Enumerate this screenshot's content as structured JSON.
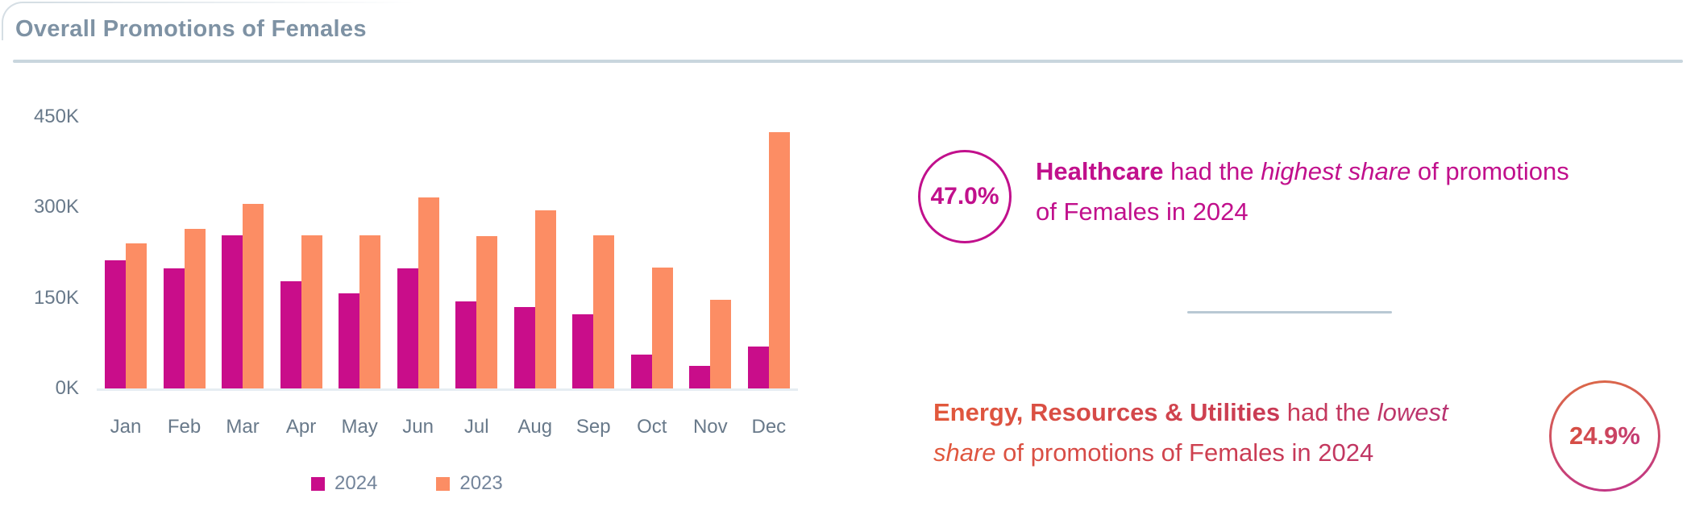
{
  "card": {
    "title": "Overall Promotions of Females"
  },
  "colors": {
    "series_2024": "#C90D8A",
    "series_2023": "#FC8D64",
    "title_text": "#7E92A4",
    "axis_text": "#68798A",
    "divider": "#C9D6DE",
    "callout_highest": "#C1108C",
    "callout_lowest_gradient_from": "#E2593B",
    "callout_lowest_gradient_to": "#AF2F83"
  },
  "chart_data": {
    "type": "bar",
    "title": "Overall Promotions of Females",
    "categories": [
      "Jan",
      "Feb",
      "Mar",
      "Apr",
      "May",
      "Jun",
      "Jul",
      "Aug",
      "Sep",
      "Oct",
      "Nov",
      "Dec"
    ],
    "series": [
      {
        "name": "2024",
        "color": "#C90D8A",
        "values_thousands": [
          212,
          199,
          254,
          178,
          157,
          199,
          144,
          135,
          123,
          56,
          38,
          69
        ]
      },
      {
        "name": "2023",
        "color": "#FC8D64",
        "values_thousands": [
          241,
          265,
          306,
          254,
          254,
          317,
          253,
          295,
          254,
          200,
          147,
          425
        ]
      }
    ],
    "y_ticks": [
      "450K",
      "300K",
      "150K",
      "0K"
    ],
    "ylim_thousands": [
      0,
      450
    ],
    "xlabel": "",
    "ylabel": "",
    "grid": false,
    "legend_position": "bottom"
  },
  "legend": {
    "items": [
      {
        "label": "2024",
        "color": "#C90D8A"
      },
      {
        "label": "2023",
        "color": "#FC8D64"
      }
    ]
  },
  "callouts": [
    {
      "id": "highest",
      "value": "47.0%",
      "segments": [
        {
          "t": "Healthcare",
          "b": true
        },
        {
          "t": " had the "
        },
        {
          "t": "highest share",
          "i": true
        },
        {
          "t": " of promotions"
        },
        {
          "br": true
        },
        {
          "t": "of Females in 2024"
        }
      ]
    },
    {
      "id": "lowest",
      "value": "24.9%",
      "segments": [
        {
          "t": "Energy, Resources & Utilities",
          "b": true
        },
        {
          "t": " had the "
        },
        {
          "t": "lowest",
          "i": true
        },
        {
          "br": true
        },
        {
          "t": "share",
          "i": true
        },
        {
          "t": " of promotions of Females in 2024"
        }
      ]
    }
  ]
}
